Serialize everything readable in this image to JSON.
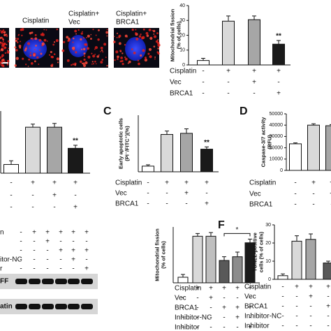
{
  "micrographs": {
    "labels": [
      [
        "Cisplatin"
      ],
      [
        "Cisplatin+",
        "Vec"
      ],
      [
        "Cisplatin+",
        "BRCA1"
      ]
    ]
  },
  "western_blot": {
    "row_labels": [
      "n",
      "itor-NC",
      "r"
    ],
    "signs": [
      [
        "-",
        "+",
        "+",
        "+",
        "+",
        "+"
      ],
      [
        "-",
        "-",
        "+",
        "-",
        "-",
        "-"
      ],
      [
        "-",
        "-",
        "-",
        "+",
        "+",
        "+"
      ],
      [
        "-",
        "-",
        "-",
        "-",
        "+",
        "-"
      ],
      [
        "-",
        "-",
        "-",
        "-",
        "-",
        "+"
      ]
    ],
    "band_labels": [
      "FF",
      "atin"
    ]
  },
  "chart_data": [
    {
      "type": "bar",
      "ylabel": [
        "Mitochondrial fission",
        "(% of cells)"
      ],
      "values": [
        3,
        29.5,
        30.5,
        14
      ],
      "errors": [
        1.5,
        3.5,
        2.5,
        2.5
      ],
      "colors": [
        "#ffffff",
        "#d9d9d9",
        "#a6a6a6",
        "#1a1a1a"
      ],
      "ylim": [
        0,
        40
      ],
      "yticks": [
        0,
        10,
        20,
        30,
        40
      ],
      "conditions": [
        {
          "label": "Cisplatin",
          "signs": [
            "-",
            "+",
            "+",
            "+"
          ]
        },
        {
          "label": "Vec",
          "signs": [
            "-",
            "-",
            "+",
            "-"
          ]
        },
        {
          "label": "BRCA1",
          "signs": [
            "-",
            "-",
            "-",
            "+"
          ]
        }
      ],
      "annotations": [
        {
          "text": "**",
          "bar": 3
        }
      ]
    },
    {
      "type": "bar",
      "values": [
        7,
        37,
        37,
        20
      ],
      "errors": [
        3,
        2.5,
        3,
        2.5
      ],
      "colors": [
        "#ffffff",
        "#d9d9d9",
        "#a6a6a6",
        "#1a1a1a"
      ],
      "ylim": [
        0,
        50
      ],
      "conditions": [
        {
          "signs": [
            "-",
            "+",
            "+",
            "+"
          ]
        },
        {
          "signs": [
            "-",
            "-",
            "+",
            "-"
          ]
        },
        {
          "signs": [
            "-",
            "-",
            "-",
            "+"
          ]
        }
      ],
      "annotations": [
        {
          "text": "**",
          "bar": 3
        }
      ]
    },
    {
      "type": "bar",
      "panel": "C",
      "ylabel": [
        "Early apoptotic cells",
        "(PI⁻/FITC⁺)(%)"
      ],
      "values": [
        2.5,
        16.5,
        17,
        10
      ],
      "errors": [
        0.6,
        1.5,
        2,
        1
      ],
      "colors": [
        "#ffffff",
        "#d9d9d9",
        "#a6a6a6",
        "#1a1a1a"
      ],
      "ylim": [
        0,
        25
      ],
      "conditions": [
        {
          "label": "Cisplatin",
          "signs": [
            "-",
            "+",
            "+",
            "+"
          ]
        },
        {
          "label": "Vec",
          "signs": [
            "-",
            "-",
            "+",
            "-"
          ]
        },
        {
          "label": "BRCA1",
          "signs": [
            "-",
            "-",
            "-",
            "+"
          ]
        }
      ],
      "annotations": [
        {
          "text": "**",
          "bar": 3
        }
      ]
    },
    {
      "type": "bar",
      "panel": "D",
      "ylabel": [
        "Caspase-3/7 activity",
        "(RFU)"
      ],
      "values": [
        23500,
        40000,
        39500
      ],
      "errors": [
        800,
        1200,
        1000
      ],
      "colors": [
        "#ffffff",
        "#d9d9d9",
        "#a6a6a6"
      ],
      "ylim": [
        0,
        50000
      ],
      "yticks": [
        0,
        10000,
        20000,
        30000,
        40000,
        50000
      ],
      "conditions": [
        {
          "label": "Cisplatin",
          "signs": [
            "-",
            "+",
            "+"
          ]
        },
        {
          "label": "Vec",
          "signs": [
            "-",
            "-",
            "+"
          ]
        },
        {
          "label": "BRCA1",
          "signs": [
            "-",
            "-",
            "-"
          ]
        }
      ]
    },
    {
      "type": "bar",
      "panel": "F",
      "ylabel": [
        "Mitochondrial fission",
        "(% of cells)"
      ],
      "values": [
        3,
        25,
        25,
        12,
        14,
        21.5
      ],
      "errors": [
        1.5,
        1.5,
        2,
        2,
        2.5,
        2
      ],
      "colors": [
        "#ffffff",
        "#d9d9d9",
        "#bfbfbf",
        "#595959",
        "#8c8c8c",
        "#1a1a1a"
      ],
      "ylim": [
        0,
        30
      ],
      "conditions": [
        {
          "label": "Cisplatin",
          "signs": [
            "-",
            "+",
            "+",
            "+",
            "+",
            "+"
          ]
        },
        {
          "label": "Vec",
          "signs": [
            "-",
            "-",
            "+",
            "-",
            "-",
            "-"
          ]
        },
        {
          "label": "BRCA1",
          "signs": [
            "-",
            "-",
            "-",
            "+",
            "+",
            "+"
          ]
        },
        {
          "label": "Inhibitor-NC",
          "signs": [
            "-",
            "-",
            "-",
            "-",
            "+",
            "-"
          ]
        },
        {
          "label": "Inhibitor",
          "signs": [
            "-",
            "-",
            "-",
            "-",
            "-",
            "+"
          ]
        }
      ],
      "brackets": [
        {
          "text": "*",
          "from": 3,
          "to": 5
        }
      ]
    },
    {
      "type": "bar",
      "ylabel": [
        "TUNEL-positive",
        "cells (% of cells)"
      ],
      "values": [
        2,
        21,
        22,
        9
      ],
      "errors": [
        1,
        3,
        3,
        1
      ],
      "colors": [
        "#ffffff",
        "#d9d9d9",
        "#a6a6a6",
        "#595959"
      ],
      "ylim": [
        0,
        30
      ],
      "yticks": [
        0,
        10,
        20,
        30
      ],
      "conditions": [
        {
          "label": "Cisplatin",
          "signs": [
            "-",
            "+",
            "+",
            "+"
          ]
        },
        {
          "label": "Vec",
          "signs": [
            "-",
            "-",
            "+",
            "-"
          ]
        },
        {
          "label": "BRCA1",
          "signs": [
            "-",
            "-",
            "-",
            "+"
          ]
        },
        {
          "label": "Inhibitor-NC",
          "signs": [
            "-",
            "-",
            "-",
            "-"
          ]
        },
        {
          "label": "Inhibitor",
          "signs": [
            "-",
            "-",
            "-",
            "-"
          ]
        }
      ]
    }
  ]
}
